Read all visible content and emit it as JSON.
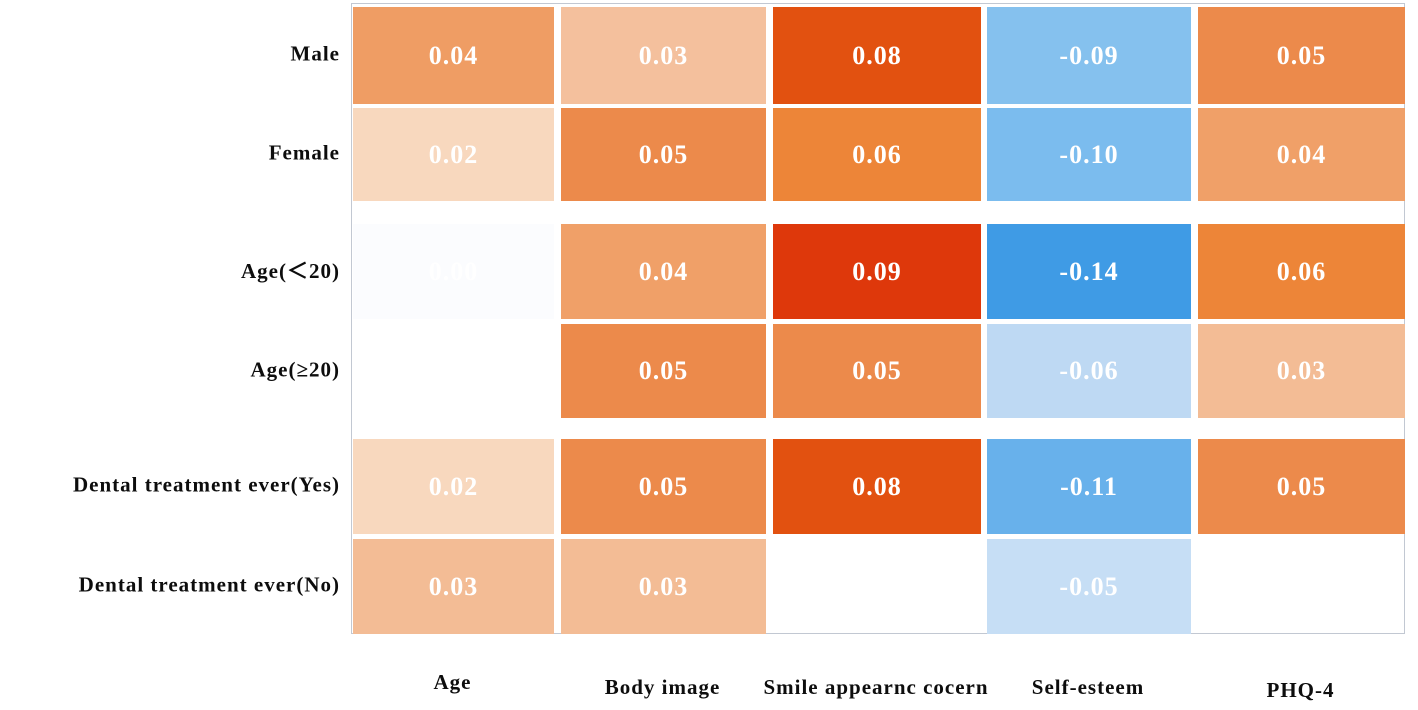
{
  "chart_data": {
    "type": "heatmap",
    "title": "",
    "rows": [
      "Male",
      "Female",
      "Age(＜20)",
      "Age(≥20)",
      "Dental treatment ever(Yes)",
      "Dental treatment ever(No)"
    ],
    "columns": [
      "Age",
      "Body image",
      "Smile appearnc cocern",
      "Self-esteem",
      "PHQ-4"
    ],
    "values": [
      [
        0.04,
        0.03,
        0.08,
        -0.09,
        0.05
      ],
      [
        0.02,
        0.05,
        0.06,
        -0.1,
        0.04
      ],
      [
        0.0,
        0.04,
        0.09,
        -0.14,
        0.06
      ],
      [
        null,
        0.05,
        0.05,
        -0.06,
        0.03
      ],
      [
        0.02,
        0.05,
        0.08,
        -0.11,
        0.05
      ],
      [
        0.03,
        0.03,
        null,
        -0.05,
        null
      ]
    ],
    "labels": [
      [
        "0.04",
        "0.03",
        "0.08",
        "-0.09",
        "0.05"
      ],
      [
        "0.02",
        "0.05",
        "0.06",
        "-0.10",
        "0.04"
      ],
      [
        "0.00",
        "0.04",
        "0.09",
        "-0.14",
        "0.06"
      ],
      [
        "",
        "0.05",
        "0.05",
        "-0.06",
        "0.03"
      ],
      [
        "0.02",
        "0.05",
        "0.08",
        "-0.11",
        "0.05"
      ],
      [
        "0.03",
        "0.03",
        "",
        "-0.05",
        ""
      ]
    ],
    "cell_colors": [
      [
        "#EF9D64",
        "#F4C09D",
        "#E25110",
        "#85C1EE",
        "#EC8A4B"
      ],
      [
        "#F8D8BE",
        "#EC8A4B",
        "#ED8538",
        "#7BBCEE",
        "#F0A068"
      ],
      [
        "#FBFCFE",
        "#F0A068",
        "#DE380B",
        "#3F9BE5",
        "#ED8538"
      ],
      [
        null,
        "#EC8A4B",
        "#EC8A4B",
        "#BED9F3",
        "#F3BC95"
      ],
      [
        "#F8D8BE",
        "#EC8A4B",
        "#E25110",
        "#68B1EB",
        "#EC8A4B"
      ],
      [
        "#F3BC95",
        "#F3BC95",
        null,
        "#C6DEF5",
        null
      ]
    ],
    "value_text_color": "#ffffff",
    "palette": {
      "positive_accent": "#DE380B",
      "negative_accent": "#3F9BE5",
      "frame": "#c2c8d2"
    },
    "layout_hints": {
      "legend": "none",
      "grid": "off",
      "grouped_row_pairs": true
    }
  }
}
